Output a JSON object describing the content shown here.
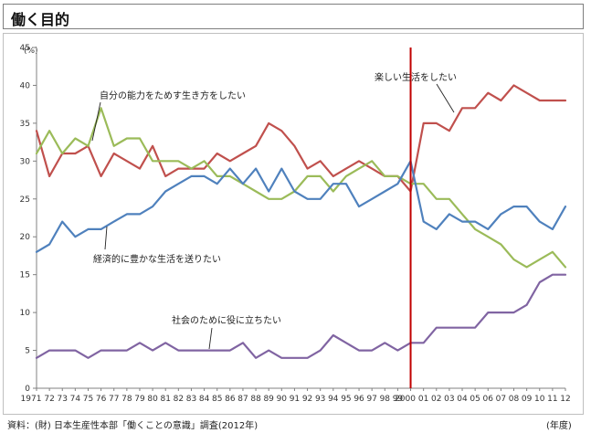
{
  "header": {
    "title": "働く目的"
  },
  "footer": {
    "source": "資料：(財) 日本生産性本部「働くことの意識」調査(2012年)",
    "x_unit": "(年度)"
  },
  "chart_data": {
    "type": "line",
    "title": "働く目的",
    "ylabel": "(%)",
    "xlabel": "(年度)",
    "ylim": [
      0,
      45
    ],
    "yticks": [
      0,
      5,
      10,
      15,
      20,
      25,
      30,
      35,
      40,
      45
    ],
    "grid": false,
    "x_labels": [
      "1971",
      "72",
      "73",
      "74",
      "75",
      "76",
      "77",
      "78",
      "79",
      "80",
      "81",
      "82",
      "83",
      "84",
      "85",
      "86",
      "87",
      "88",
      "89",
      "90",
      "91",
      "92",
      "93",
      "94",
      "95",
      "96",
      "97",
      "98",
      "99",
      "2000",
      "01",
      "02",
      "03",
      "04",
      "05",
      "06",
      "07",
      "08",
      "09",
      "10",
      "11",
      "12"
    ],
    "x_tick_text": [
      "1971",
      "72",
      "73",
      "74",
      "75",
      "76",
      "77",
      "78",
      "79",
      "80",
      "81",
      "82",
      "83",
      "84",
      "85",
      "86",
      "87",
      "88",
      "89",
      "90",
      "91",
      "92",
      "93",
      "94",
      "95",
      "96",
      "97",
      "98",
      "99",
      "2000",
      "01",
      "02",
      "03",
      "04",
      "05",
      "06",
      "07",
      "08",
      "09",
      "10",
      "11",
      "12"
    ],
    "series": [
      {
        "name": "楽しい生活をしたい",
        "color": "#c0504d",
        "values": [
          34,
          28,
          31,
          31,
          32,
          28,
          31,
          30,
          29,
          32,
          28,
          29,
          29,
          29,
          31,
          30,
          31,
          32,
          35,
          34,
          32,
          29,
          30,
          28,
          29,
          30,
          29,
          28,
          28,
          26,
          35,
          35,
          34,
          37,
          37,
          39,
          38,
          40,
          39,
          38,
          38,
          38
        ]
      },
      {
        "name": "自分の能力をためす生き方をしたい",
        "color": "#9bbb59",
        "values": [
          31,
          34,
          31,
          33,
          32,
          37,
          32,
          33,
          33,
          30,
          30,
          30,
          29,
          30,
          28,
          28,
          27,
          26,
          25,
          25,
          26,
          28,
          28,
          26,
          28,
          29,
          30,
          28,
          28,
          27,
          27,
          25,
          25,
          23,
          21,
          20,
          19,
          17,
          16,
          17,
          18,
          16
        ]
      },
      {
        "name": "経済的に豊かな生活を送りたい",
        "color": "#4f81bd",
        "values": [
          18,
          19,
          22,
          20,
          21,
          21,
          22,
          23,
          23,
          24,
          26,
          27,
          28,
          28,
          27,
          29,
          27,
          29,
          26,
          29,
          26,
          25,
          25,
          27,
          27,
          24,
          25,
          26,
          27,
          30,
          22,
          21,
          23,
          22,
          22,
          21,
          23,
          24,
          24,
          22,
          21,
          24
        ]
      },
      {
        "name": "社会のために役に立ちたい",
        "color": "#8064a2",
        "values": [
          4,
          5,
          5,
          5,
          4,
          5,
          5,
          5,
          6,
          5,
          6,
          5,
          5,
          5,
          5,
          5,
          6,
          4,
          5,
          4,
          4,
          4,
          5,
          7,
          6,
          5,
          5,
          6,
          5,
          6,
          6,
          8,
          8,
          8,
          8,
          10,
          10,
          10,
          11,
          14,
          15,
          15
        ]
      }
    ],
    "marker_line": {
      "at_index": 29,
      "color": "#c00000"
    }
  }
}
